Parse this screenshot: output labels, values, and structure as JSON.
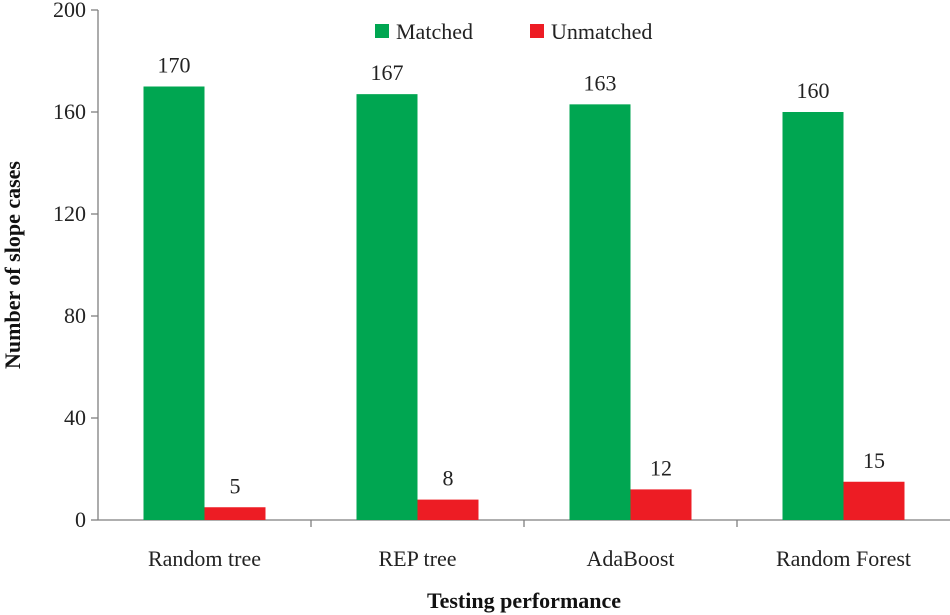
{
  "chart_data": {
    "type": "bar",
    "xlabel": "Testing performance",
    "ylabel": "Number  of slope cases",
    "ylim": [
      0,
      200
    ],
    "yticks": [
      0,
      40,
      80,
      120,
      160,
      200
    ],
    "categories": [
      "Random tree",
      "REP tree",
      "AdaBoost",
      "Random Forest"
    ],
    "series": [
      {
        "name": "Matched",
        "color": "#00a651",
        "values": [
          170,
          167,
          163,
          160
        ]
      },
      {
        "name": "Unmatched",
        "color": "#ed1c24",
        "values": [
          5,
          8,
          12,
          15
        ]
      }
    ],
    "legend_position": "top",
    "grid": false
  }
}
